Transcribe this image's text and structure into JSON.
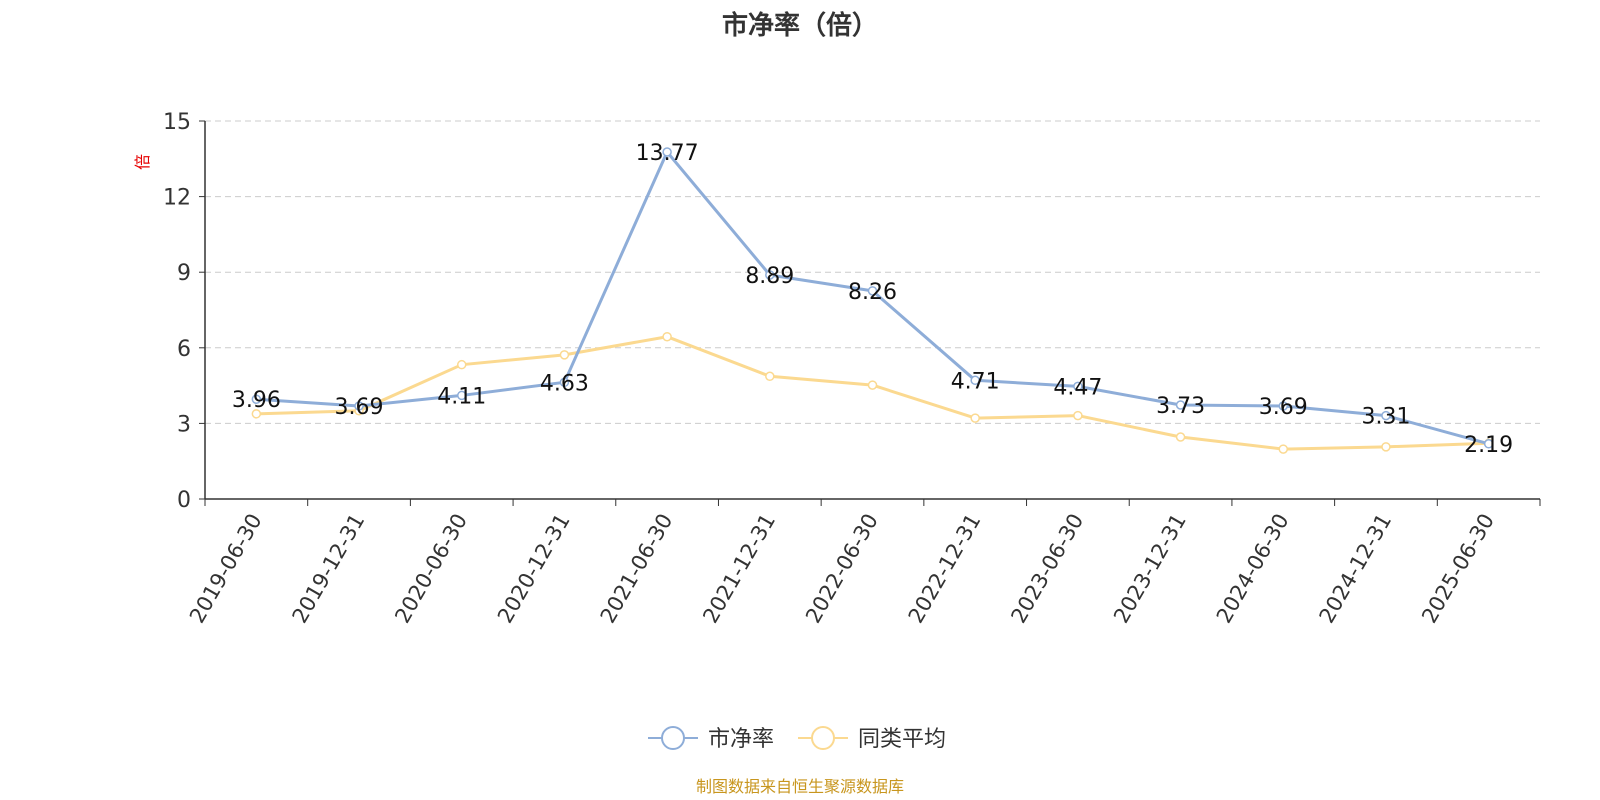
{
  "chart_data": {
    "type": "line",
    "title": "市净率（倍）",
    "ylabel": "倍",
    "ylim": [
      0,
      15
    ],
    "yticks": [
      0,
      3,
      6,
      9,
      12,
      15
    ],
    "grid": true,
    "legend_position": "bottom-center",
    "categories": [
      "2019-06-30",
      "2019-12-31",
      "2020-06-30",
      "2020-12-31",
      "2021-06-30",
      "2021-12-31",
      "2022-06-30",
      "2022-12-31",
      "2023-06-30",
      "2023-12-31",
      "2024-06-30",
      "2024-12-31",
      "2025-06-30"
    ],
    "series": [
      {
        "name": "市净率",
        "color": "#8eadd8",
        "values": [
          3.96,
          3.69,
          4.11,
          4.63,
          13.77,
          8.89,
          8.26,
          4.71,
          4.47,
          3.73,
          3.69,
          3.31,
          2.19
        ],
        "labels": [
          "3.96",
          "3.69",
          "4.11",
          "4.63",
          "13.77",
          "8.89",
          "8.26",
          "4.71",
          "4.47",
          "3.73",
          "3.69",
          "3.31",
          "2.19"
        ]
      },
      {
        "name": "同类平均",
        "color": "#fbd990",
        "values": [
          3.38,
          3.5,
          5.33,
          5.72,
          6.44,
          4.87,
          4.52,
          3.21,
          3.31,
          2.46,
          1.98,
          2.07,
          2.21
        ]
      }
    ],
    "footer": "制图数据来自恒生聚源数据库"
  },
  "colors": {
    "axis": "#333333",
    "grid": "#cccccc",
    "ylabel": "#e60000",
    "footer": "#c8961e"
  }
}
